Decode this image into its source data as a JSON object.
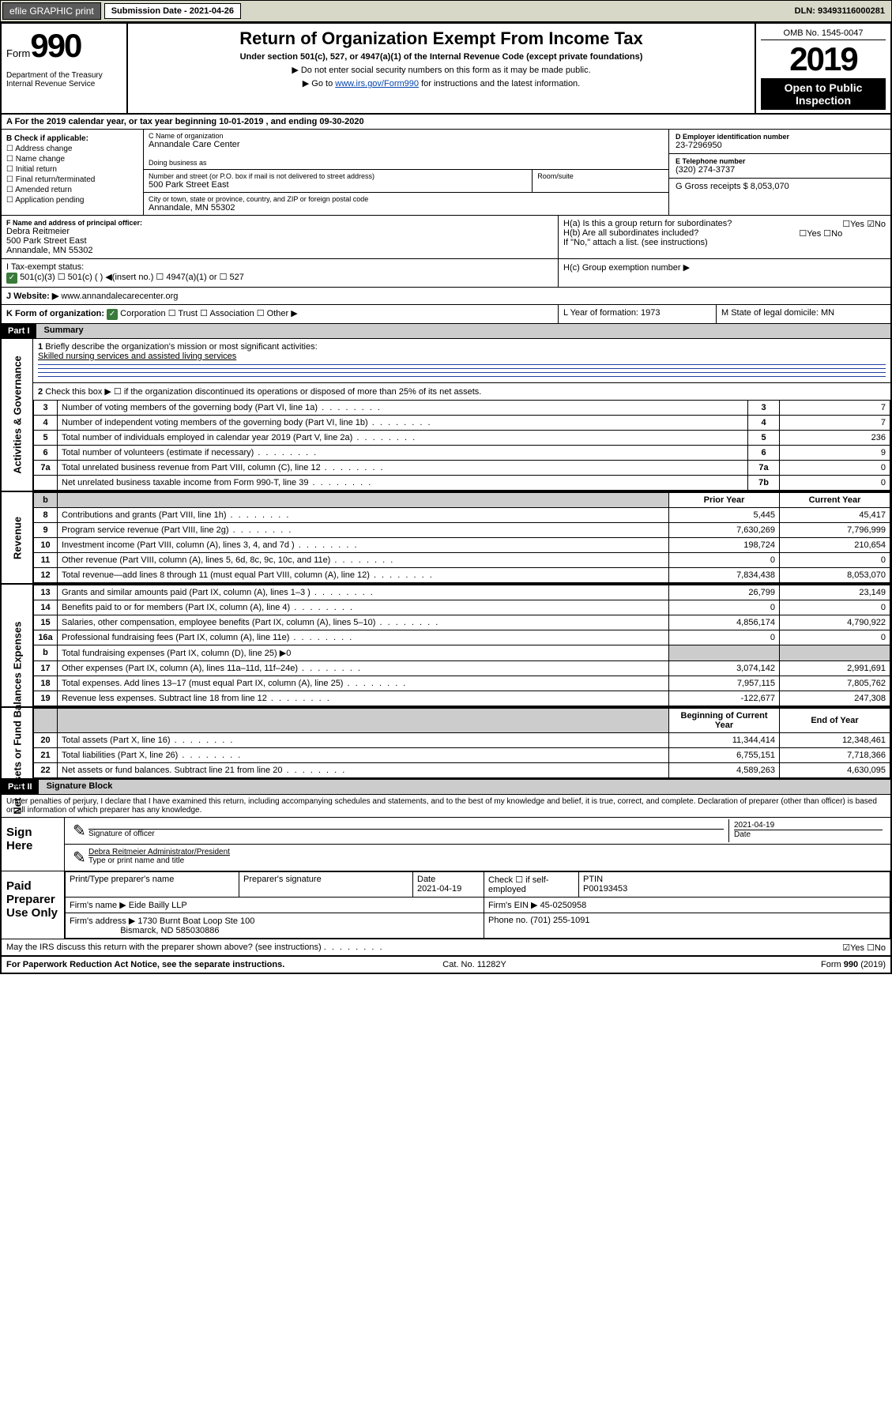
{
  "topbar": {
    "efile": "efile GRAPHIC print",
    "submission": "Submission Date - 2021-04-26",
    "dln": "DLN: 93493116000281"
  },
  "header": {
    "form_word": "Form",
    "form_num": "990",
    "dept": "Department of the Treasury\nInternal Revenue Service",
    "title": "Return of Organization Exempt From Income Tax",
    "subtitle": "Under section 501(c), 527, or 4947(a)(1) of the Internal Revenue Code (except private foundations)",
    "note1": "▶ Do not enter social security numbers on this form as it may be made public.",
    "note2_pre": "▶ Go to ",
    "note2_link": "www.irs.gov/Form990",
    "note2_post": " for instructions and the latest information.",
    "omb": "OMB No. 1545-0047",
    "year": "2019",
    "open": "Open to Public Inspection"
  },
  "rowA": "A For the 2019 calendar year, or tax year beginning 10-01-2019    , and ending 09-30-2020",
  "colB": {
    "label": "B Check if applicable:",
    "items": [
      "Address change",
      "Name change",
      "Initial return",
      "Final return/terminated",
      "Amended return",
      "Application pending"
    ]
  },
  "colC": {
    "name_lbl": "C Name of organization",
    "name": "Annandale Care Center",
    "dba_lbl": "Doing business as",
    "addr_lbl": "Number and street (or P.O. box if mail is not delivered to street address)",
    "room_lbl": "Room/suite",
    "addr": "500 Park Street East",
    "city_lbl": "City or town, state or province, country, and ZIP or foreign postal code",
    "city": "Annandale, MN  55302"
  },
  "colD": {
    "lbl": "D Employer identification number",
    "val": "23-7296950"
  },
  "colE": {
    "lbl": "E Telephone number",
    "val": "(320) 274-3737"
  },
  "colG": {
    "lbl": "G Gross receipts $ 8,053,070"
  },
  "colF": {
    "lbl": "F  Name and address of principal officer:",
    "name": "Debra Reitmeier",
    "addr1": "500 Park Street East",
    "addr2": "Annandale, MN  55302"
  },
  "colH": {
    "a": "H(a)  Is this a group return for subordinates?",
    "a_ans": "☐Yes ☑No",
    "b": "H(b)  Are all subordinates included?",
    "b_ans": "☐Yes ☐No",
    "b_note": "If \"No,\" attach a list. (see instructions)",
    "c": "H(c)  Group exemption number ▶"
  },
  "rowI": {
    "lbl": "I     Tax-exempt status:",
    "opts": "501(c)(3)   ☐  501(c) (  ) ◀(insert no.)    ☐  4947(a)(1) or  ☐  527"
  },
  "rowJ": {
    "lbl": "J    Website: ▶",
    "val": "  www.annandalecarecenter.org"
  },
  "rowK": {
    "lbl": "K Form of organization:",
    "opts": "Corporation ☐ Trust ☐ Association ☐ Other ▶"
  },
  "rowL": "L Year of formation: 1973",
  "rowM": "M State of legal domicile: MN",
  "part1": {
    "hdr": "Part I",
    "title": "Summary"
  },
  "summary": {
    "q1": "Briefly describe the organization's mission or most significant activities:",
    "q1a": "Skilled nursing services and assisted living services",
    "q2": "Check this box ▶ ☐  if the organization discontinued its operations or disposed of more than 25% of its net assets.",
    "rows_gov": [
      {
        "n": "3",
        "d": "Number of voting members of the governing body (Part VI, line 1a)",
        "b": "3",
        "v": "7"
      },
      {
        "n": "4",
        "d": "Number of independent voting members of the governing body (Part VI, line 1b)",
        "b": "4",
        "v": "7"
      },
      {
        "n": "5",
        "d": "Total number of individuals employed in calendar year 2019 (Part V, line 2a)",
        "b": "5",
        "v": "236"
      },
      {
        "n": "6",
        "d": "Total number of volunteers (estimate if necessary)",
        "b": "6",
        "v": "9"
      },
      {
        "n": "7a",
        "d": "Total unrelated business revenue from Part VIII, column (C), line 12",
        "b": "7a",
        "v": "0"
      },
      {
        "n": "",
        "d": "Net unrelated business taxable income from Form 990-T, line 39",
        "b": "7b",
        "v": "0"
      }
    ],
    "col_prior": "Prior Year",
    "col_current": "Current Year",
    "rows_rev": [
      {
        "n": "8",
        "d": "Contributions and grants (Part VIII, line 1h)",
        "p": "5,445",
        "c": "45,417"
      },
      {
        "n": "9",
        "d": "Program service revenue (Part VIII, line 2g)",
        "p": "7,630,269",
        "c": "7,796,999"
      },
      {
        "n": "10",
        "d": "Investment income (Part VIII, column (A), lines 3, 4, and 7d )",
        "p": "198,724",
        "c": "210,654"
      },
      {
        "n": "11",
        "d": "Other revenue (Part VIII, column (A), lines 5, 6d, 8c, 9c, 10c, and 11e)",
        "p": "0",
        "c": "0"
      },
      {
        "n": "12",
        "d": "Total revenue—add lines 8 through 11 (must equal Part VIII, column (A), line 12)",
        "p": "7,834,438",
        "c": "8,053,070"
      }
    ],
    "rows_exp": [
      {
        "n": "13",
        "d": "Grants and similar amounts paid (Part IX, column (A), lines 1–3 )",
        "p": "26,799",
        "c": "23,149"
      },
      {
        "n": "14",
        "d": "Benefits paid to or for members (Part IX, column (A), line 4)",
        "p": "0",
        "c": "0"
      },
      {
        "n": "15",
        "d": "Salaries, other compensation, employee benefits (Part IX, column (A), lines 5–10)",
        "p": "4,856,174",
        "c": "4,790,922"
      },
      {
        "n": "16a",
        "d": "Professional fundraising fees (Part IX, column (A), line 11e)",
        "p": "0",
        "c": "0"
      },
      {
        "n": "b",
        "d": "Total fundraising expenses (Part IX, column (D), line 25) ▶0",
        "p": "",
        "c": "",
        "grey": true
      },
      {
        "n": "17",
        "d": "Other expenses (Part IX, column (A), lines 11a–11d, 11f–24e)",
        "p": "3,074,142",
        "c": "2,991,691"
      },
      {
        "n": "18",
        "d": "Total expenses. Add lines 13–17 (must equal Part IX, column (A), line 25)",
        "p": "7,957,115",
        "c": "7,805,762"
      },
      {
        "n": "19",
        "d": "Revenue less expenses. Subtract line 18 from line 12",
        "p": "-122,677",
        "c": "247,308"
      }
    ],
    "col_begin": "Beginning of Current Year",
    "col_end": "End of Year",
    "rows_net": [
      {
        "n": "20",
        "d": "Total assets (Part X, line 16)",
        "p": "11,344,414",
        "c": "12,348,461"
      },
      {
        "n": "21",
        "d": "Total liabilities (Part X, line 26)",
        "p": "6,755,151",
        "c": "7,718,366"
      },
      {
        "n": "22",
        "d": "Net assets or fund balances. Subtract line 21 from line 20",
        "p": "4,589,263",
        "c": "4,630,095"
      }
    ]
  },
  "vside": {
    "gov": "Activities & Governance",
    "rev": "Revenue",
    "exp": "Expenses",
    "net": "Net Assets or Fund Balances"
  },
  "part2": {
    "hdr": "Part II",
    "title": "Signature Block"
  },
  "sig": {
    "decl": "Under penalties of perjury, I declare that I have examined this return, including accompanying schedules and statements, and to the best of my knowledge and belief, it is true, correct, and complete. Declaration of preparer (other than officer) is based on all information of which preparer has any knowledge.",
    "sign_here": "Sign Here",
    "sig_officer": "Signature of officer",
    "sig_date": "2021-04-19",
    "date_lbl": "Date",
    "name_title": "Debra Reitmeier  Administrator/President",
    "name_lbl": "Type or print name and title",
    "paid": "Paid Preparer Use Only",
    "prep_name_lbl": "Print/Type preparer's name",
    "prep_sig_lbl": "Preparer's signature",
    "prep_date_lbl": "Date",
    "prep_date": "2021-04-19",
    "self_emp": "Check ☐ if self-employed",
    "ptin_lbl": "PTIN",
    "ptin": "P00193453",
    "firm_name_lbl": "Firm's name    ▶",
    "firm_name": "Eide Bailly LLP",
    "firm_ein_lbl": "Firm's EIN ▶",
    "firm_ein": "45-0250958",
    "firm_addr_lbl": "Firm's address ▶",
    "firm_addr": "1730 Burnt Boat Loop Ste 100",
    "firm_city": "Bismarck, ND  585030886",
    "phone_lbl": "Phone no.",
    "phone": "(701) 255-1091",
    "discuss": "May the IRS discuss this return with the preparer shown above? (see instructions)",
    "discuss_ans": "☑Yes  ☐No"
  },
  "footer": {
    "pra": "For Paperwork Reduction Act Notice, see the separate instructions.",
    "cat": "Cat. No. 11282Y",
    "form": "Form 990 (2019)"
  }
}
